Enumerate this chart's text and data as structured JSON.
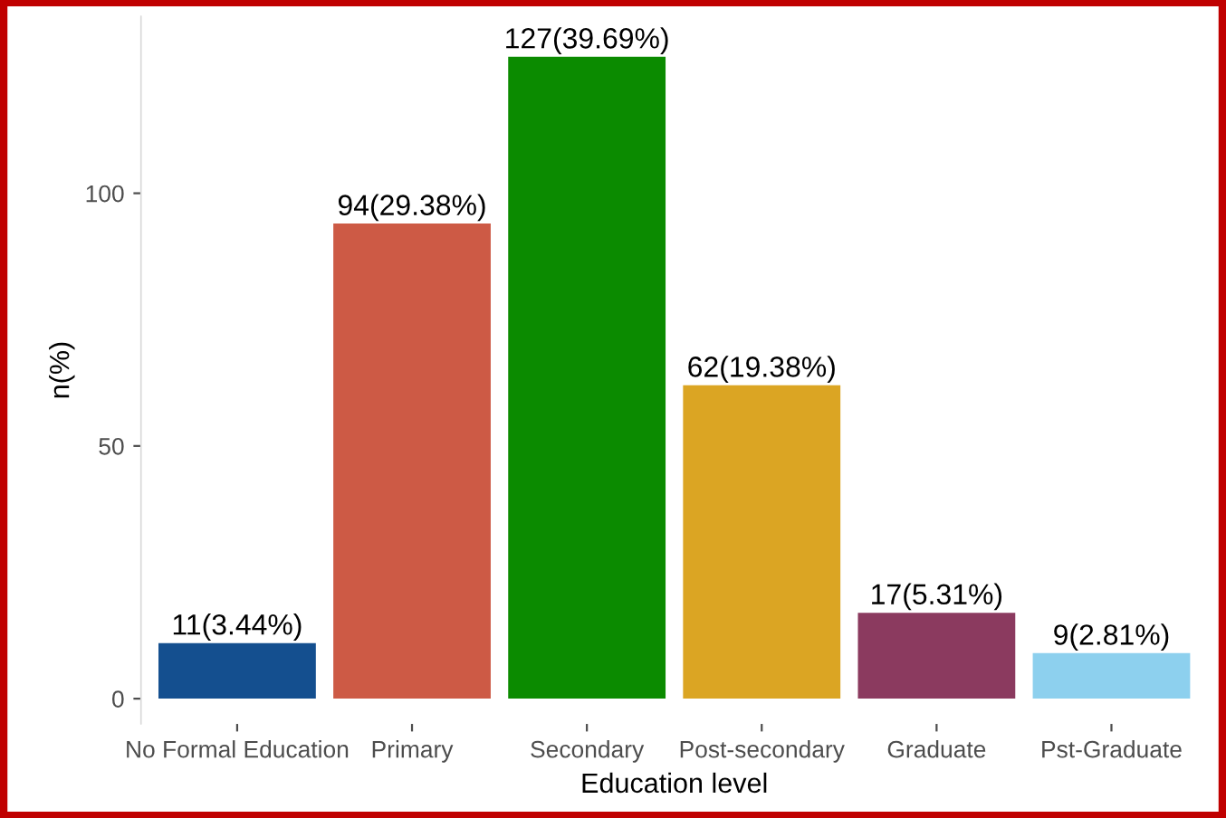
{
  "chart_data": {
    "type": "bar",
    "xlabel": "Education level",
    "ylabel": "n(%)",
    "categories": [
      "No Formal Education",
      "Primary",
      "Secondary",
      "Post-secondary",
      "Graduate",
      "Pst-Graduate"
    ],
    "values": [
      11,
      94,
      127,
      62,
      17,
      9
    ],
    "colors": [
      "#144f8f",
      "#cd5a45",
      "#0b8b00",
      "#dba523",
      "#8b3a5f",
      "#8dd0ee"
    ],
    "value_labels": [
      "11(3.44%)",
      "94(29.38%)",
      "127(39.69%)",
      "62(19.38%)",
      "17(5.31%)",
      "9(2.81%)"
    ],
    "ylim": [
      -5,
      135
    ],
    "yticks": [
      0,
      50,
      100
    ],
    "grid": false,
    "legend": false
  }
}
